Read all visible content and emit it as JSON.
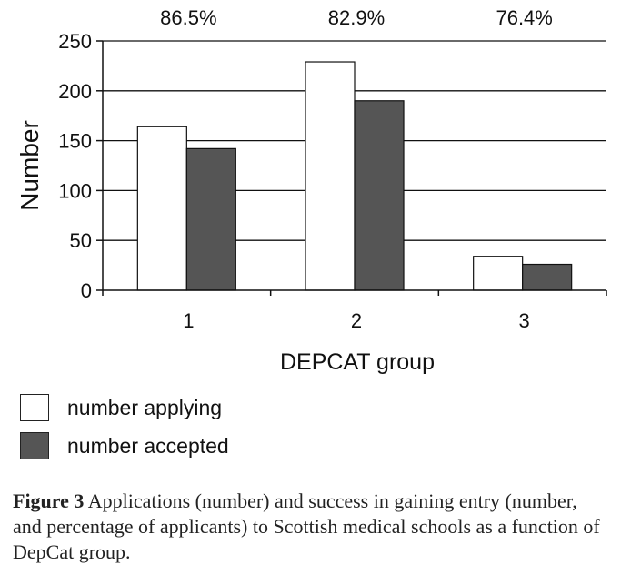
{
  "chart_data": {
    "type": "bar",
    "categories": [
      "1",
      "2",
      "3"
    ],
    "series": [
      {
        "name": "number applying",
        "values": [
          164,
          229,
          34
        ],
        "color": "#ffffff"
      },
      {
        "name": "number accepted",
        "values": [
          142,
          190,
          26
        ],
        "color": "#555555"
      }
    ],
    "percent_labels": [
      "86.5%",
      "82.9%",
      "76.4%"
    ],
    "title": "",
    "xlabel": "DEPCAT group",
    "ylabel": "Number",
    "ylim": [
      0,
      250
    ],
    "yticks": [
      "0",
      "50",
      "100",
      "150",
      "200",
      "250"
    ],
    "grid": true,
    "legend_position": "bottom-left"
  },
  "caption": {
    "label": "Figure 3",
    "text": "Applications (number) and success in gaining entry (number, and percentage of applicants) to Scottish medical schools as a function of DepCat group."
  }
}
